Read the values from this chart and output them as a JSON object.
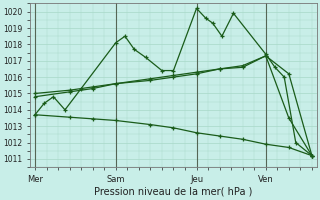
{
  "xlabel": "Pression niveau de la mer( hPa )",
  "bg_color": "#c8eee8",
  "grid_color": "#a8d8c8",
  "line_color": "#1a5c1a",
  "vline_color": "#556655",
  "ylim": [
    1010.5,
    1020.5
  ],
  "yticks": [
    1011,
    1012,
    1013,
    1014,
    1015,
    1016,
    1017,
    1018,
    1019,
    1020
  ],
  "xlim": [
    -0.2,
    12.2
  ],
  "xtick_positions": [
    0,
    3.5,
    7.0,
    10.0
  ],
  "xtick_labels": [
    "Mer",
    "Sam",
    "Jeu",
    "Ven"
  ],
  "vlines": [
    0,
    3.5,
    7.0,
    10.0
  ],
  "series": [
    {
      "x": [
        0,
        0.4,
        0.8,
        1.3,
        2.0,
        3.5,
        3.9,
        4.3,
        4.8,
        5.5,
        6.0,
        7.0,
        7.4,
        7.7,
        8.1,
        8.6,
        10.0,
        10.4,
        10.8,
        11.3,
        12.0
      ],
      "y": [
        1013.7,
        1014.4,
        1014.8,
        1014.0,
        1015.3,
        1018.1,
        1018.5,
        1017.7,
        1017.2,
        1016.4,
        1016.4,
        1020.2,
        1019.6,
        1019.3,
        1018.5,
        1019.9,
        1017.4,
        1016.6,
        1016.0,
        1012.0,
        1011.2
      ]
    },
    {
      "x": [
        0,
        1.5,
        2.5,
        3.5,
        5.0,
        6.0,
        7.0,
        8.0,
        9.0,
        10.0,
        11.0,
        12.0
      ],
      "y": [
        1014.8,
        1015.1,
        1015.3,
        1015.6,
        1015.8,
        1016.0,
        1016.2,
        1016.5,
        1016.7,
        1017.3,
        1013.5,
        1011.2
      ]
    },
    {
      "x": [
        0,
        1.5,
        2.5,
        3.5,
        5.0,
        6.0,
        7.0,
        8.0,
        9.0,
        10.0,
        11.0,
        12.0
      ],
      "y": [
        1015.0,
        1015.2,
        1015.4,
        1015.6,
        1015.9,
        1016.1,
        1016.3,
        1016.5,
        1016.6,
        1017.3,
        1016.2,
        1011.2
      ]
    },
    {
      "x": [
        0,
        1.5,
        2.5,
        3.5,
        5.0,
        6.0,
        7.0,
        8.0,
        9.0,
        10.0,
        11.0,
        12.0
      ],
      "y": [
        1013.7,
        1013.55,
        1013.45,
        1013.35,
        1013.1,
        1012.9,
        1012.6,
        1012.4,
        1012.2,
        1011.9,
        1011.7,
        1011.2
      ]
    }
  ]
}
